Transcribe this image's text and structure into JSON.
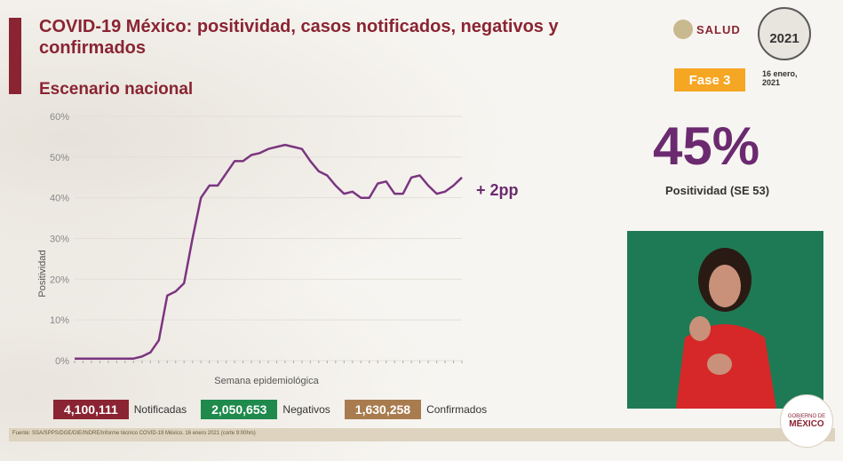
{
  "header": {
    "title": "COVID-19 México: positividad, casos notificados, negativos y confirmados",
    "subtitle": "Escenario nacional",
    "salud_logo": "SALUD",
    "seal_year": "2021",
    "phase": "Fase 3",
    "date": "16 enero, 2021"
  },
  "highlight": {
    "value": "45%",
    "label": "Positividad (SE 53)",
    "change": "+ 2pp"
  },
  "stats": {
    "notificadas_value": "4,100,111",
    "notificadas_label": "Notificadas",
    "negativos_value": "2,050,653",
    "negativos_label": "Negativos",
    "confirmados_value": "1,630,258",
    "confirmados_label": "Confirmados"
  },
  "colors": {
    "brand": "#8a2432",
    "line": "#7b3580",
    "negativos": "#1f8a4c",
    "confirmados": "#a87c4f",
    "phase": "#f5a623"
  },
  "footer": {
    "source": "Fuente: SSA/SPPS/DGE/DIE/INDRE/Informe técnico COVID-19 México. 16 enero 2021 (corte 9:00hrs)",
    "gob_line1": "GOBIERNO DE",
    "gob_line2": "MÉXICO"
  },
  "chart_data": {
    "type": "line",
    "xlabel": "Semana epidemiológica",
    "ylabel": "Positividad",
    "ylim": [
      0,
      60
    ],
    "yticks": [
      "0%",
      "10%",
      "20%",
      "30%",
      "40%",
      "50%",
      "60%"
    ],
    "grid": true,
    "series": [
      {
        "values": [
          0.5,
          0.5,
          0.5,
          0.5,
          0.5,
          0.5,
          0.5,
          0.5,
          1,
          2,
          5,
          16,
          17,
          19,
          30,
          40,
          43,
          43,
          46,
          49,
          49,
          50.5,
          51,
          52,
          52.5,
          53,
          52.5,
          52,
          49,
          46.5,
          45.5,
          43,
          41,
          41.5,
          40,
          40,
          43.5,
          44,
          41,
          41,
          45,
          45.5,
          43,
          41,
          41.5,
          43,
          45
        ]
      }
    ]
  }
}
